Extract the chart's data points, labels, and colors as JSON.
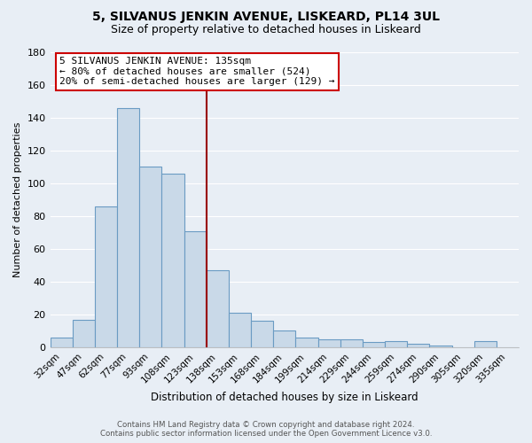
{
  "title": "5, SILVANUS JENKIN AVENUE, LISKEARD, PL14 3UL",
  "subtitle": "Size of property relative to detached houses in Liskeard",
  "xlabel": "Distribution of detached houses by size in Liskeard",
  "ylabel": "Number of detached properties",
  "categories": [
    "32sqm",
    "47sqm",
    "62sqm",
    "77sqm",
    "93sqm",
    "108sqm",
    "123sqm",
    "138sqm",
    "153sqm",
    "168sqm",
    "184sqm",
    "199sqm",
    "214sqm",
    "229sqm",
    "244sqm",
    "259sqm",
    "274sqm",
    "290sqm",
    "305sqm",
    "320sqm",
    "335sqm"
  ],
  "values": [
    6,
    17,
    86,
    146,
    110,
    106,
    71,
    47,
    21,
    16,
    10,
    6,
    5,
    5,
    3,
    4,
    2,
    1,
    0,
    4,
    0
  ],
  "bar_color": "#c9d9e8",
  "bar_edge_color": "#6a9bc3",
  "background_color": "#e8eef5",
  "grid_color": "#ffffff",
  "vline_color": "#990000",
  "annotation_line1": "5 SILVANUS JENKIN AVENUE: 135sqm",
  "annotation_line2": "← 80% of detached houses are smaller (524)",
  "annotation_line3": "20% of semi-detached houses are larger (129) →",
  "annotation_box_facecolor": "#ffffff",
  "annotation_box_edgecolor": "#cc0000",
  "ylim": [
    0,
    180
  ],
  "yticks": [
    0,
    20,
    40,
    60,
    80,
    100,
    120,
    140,
    160,
    180
  ],
  "footer1": "Contains HM Land Registry data © Crown copyright and database right 2024.",
  "footer2": "Contains public sector information licensed under the Open Government Licence v3.0."
}
